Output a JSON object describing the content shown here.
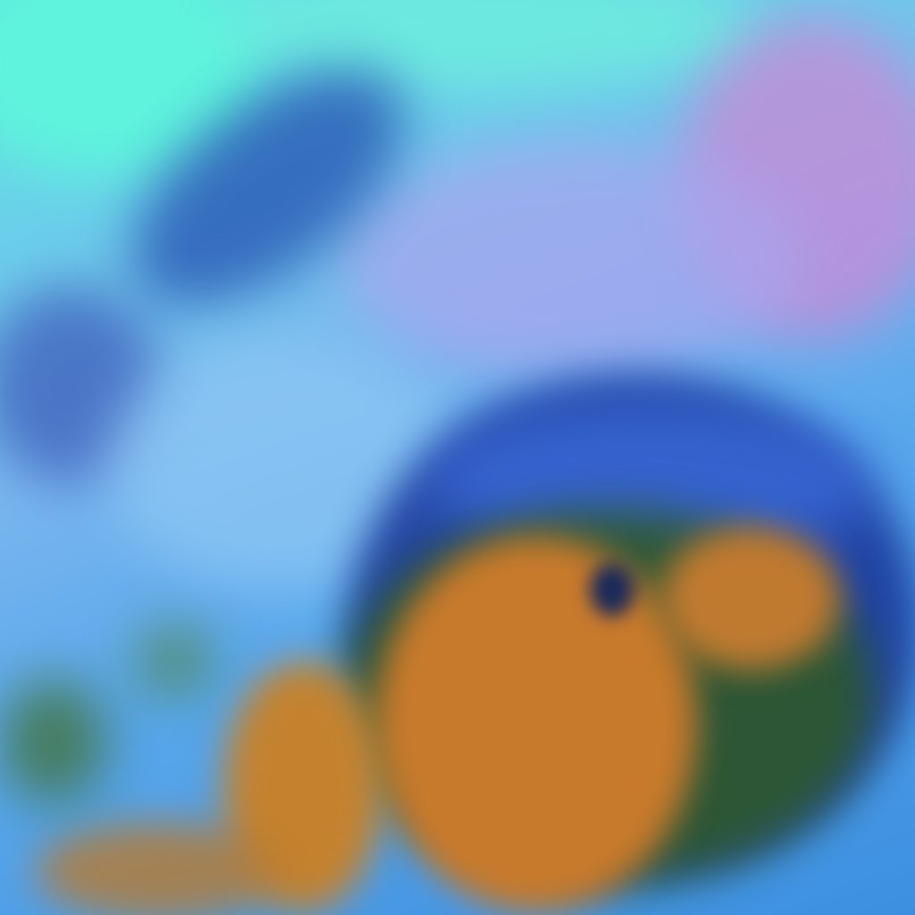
{
  "image": {
    "kind": "false-color satellite imagery",
    "palette": {
      "upper_cyan": "#5fe6e0",
      "haze_lavender": "#a9a6ee",
      "pink_terrain": "#c98ad6",
      "cloud_blue": "#3c8fe0",
      "deep_blue_edge": "#1c3a9c",
      "orange_cloud": "#c87a2c",
      "green_fringe": "#3a6a1e"
    }
  }
}
